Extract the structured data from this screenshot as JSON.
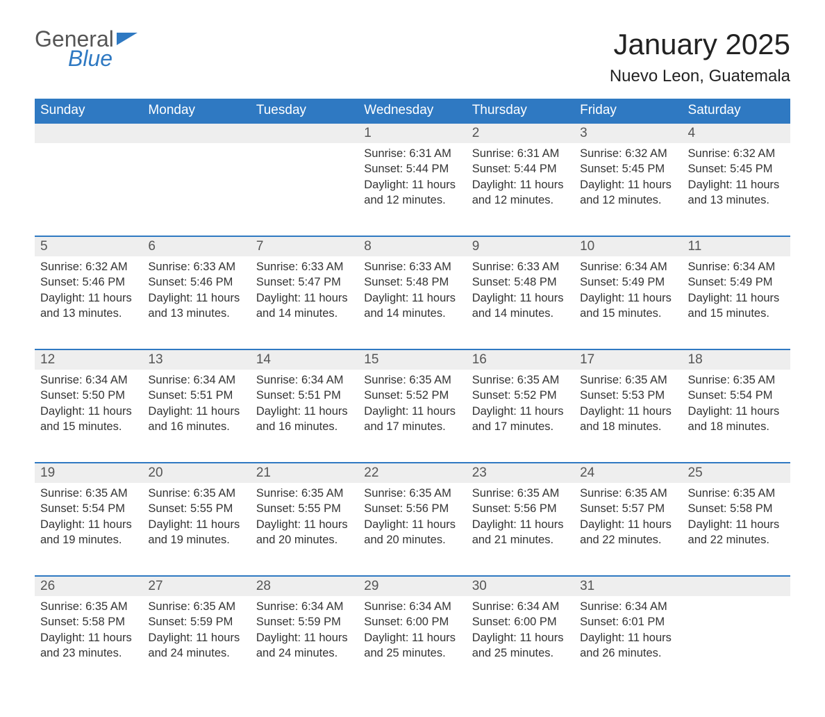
{
  "logo": {
    "word1": "General",
    "word2": "Blue"
  },
  "title": "January 2025",
  "subtitle": "Nuevo Leon, Guatemala",
  "colors": {
    "header_bg": "#2f79c2",
    "header_text": "#ffffff",
    "daynum_bg": "#eeeeee",
    "border_top": "#2f79c2",
    "body_text": "#333333",
    "logo_gray": "#555555",
    "logo_blue": "#2f79c2",
    "page_bg": "#ffffff"
  },
  "typography": {
    "title_fontsize": 42,
    "subtitle_fontsize": 24,
    "header_fontsize": 19,
    "daynum_fontsize": 19,
    "cell_fontsize": 16.5
  },
  "columns": [
    "Sunday",
    "Monday",
    "Tuesday",
    "Wednesday",
    "Thursday",
    "Friday",
    "Saturday"
  ],
  "weeks": [
    [
      null,
      null,
      null,
      {
        "n": "1",
        "sunrise": "6:31 AM",
        "sunset": "5:44 PM",
        "daylight": "11 hours and 12 minutes."
      },
      {
        "n": "2",
        "sunrise": "6:31 AM",
        "sunset": "5:44 PM",
        "daylight": "11 hours and 12 minutes."
      },
      {
        "n": "3",
        "sunrise": "6:32 AM",
        "sunset": "5:45 PM",
        "daylight": "11 hours and 12 minutes."
      },
      {
        "n": "4",
        "sunrise": "6:32 AM",
        "sunset": "5:45 PM",
        "daylight": "11 hours and 13 minutes."
      }
    ],
    [
      {
        "n": "5",
        "sunrise": "6:32 AM",
        "sunset": "5:46 PM",
        "daylight": "11 hours and 13 minutes."
      },
      {
        "n": "6",
        "sunrise": "6:33 AM",
        "sunset": "5:46 PM",
        "daylight": "11 hours and 13 minutes."
      },
      {
        "n": "7",
        "sunrise": "6:33 AM",
        "sunset": "5:47 PM",
        "daylight": "11 hours and 14 minutes."
      },
      {
        "n": "8",
        "sunrise": "6:33 AM",
        "sunset": "5:48 PM",
        "daylight": "11 hours and 14 minutes."
      },
      {
        "n": "9",
        "sunrise": "6:33 AM",
        "sunset": "5:48 PM",
        "daylight": "11 hours and 14 minutes."
      },
      {
        "n": "10",
        "sunrise": "6:34 AM",
        "sunset": "5:49 PM",
        "daylight": "11 hours and 15 minutes."
      },
      {
        "n": "11",
        "sunrise": "6:34 AM",
        "sunset": "5:49 PM",
        "daylight": "11 hours and 15 minutes."
      }
    ],
    [
      {
        "n": "12",
        "sunrise": "6:34 AM",
        "sunset": "5:50 PM",
        "daylight": "11 hours and 15 minutes."
      },
      {
        "n": "13",
        "sunrise": "6:34 AM",
        "sunset": "5:51 PM",
        "daylight": "11 hours and 16 minutes."
      },
      {
        "n": "14",
        "sunrise": "6:34 AM",
        "sunset": "5:51 PM",
        "daylight": "11 hours and 16 minutes."
      },
      {
        "n": "15",
        "sunrise": "6:35 AM",
        "sunset": "5:52 PM",
        "daylight": "11 hours and 17 minutes."
      },
      {
        "n": "16",
        "sunrise": "6:35 AM",
        "sunset": "5:52 PM",
        "daylight": "11 hours and 17 minutes."
      },
      {
        "n": "17",
        "sunrise": "6:35 AM",
        "sunset": "5:53 PM",
        "daylight": "11 hours and 18 minutes."
      },
      {
        "n": "18",
        "sunrise": "6:35 AM",
        "sunset": "5:54 PM",
        "daylight": "11 hours and 18 minutes."
      }
    ],
    [
      {
        "n": "19",
        "sunrise": "6:35 AM",
        "sunset": "5:54 PM",
        "daylight": "11 hours and 19 minutes."
      },
      {
        "n": "20",
        "sunrise": "6:35 AM",
        "sunset": "5:55 PM",
        "daylight": "11 hours and 19 minutes."
      },
      {
        "n": "21",
        "sunrise": "6:35 AM",
        "sunset": "5:55 PM",
        "daylight": "11 hours and 20 minutes."
      },
      {
        "n": "22",
        "sunrise": "6:35 AM",
        "sunset": "5:56 PM",
        "daylight": "11 hours and 20 minutes."
      },
      {
        "n": "23",
        "sunrise": "6:35 AM",
        "sunset": "5:56 PM",
        "daylight": "11 hours and 21 minutes."
      },
      {
        "n": "24",
        "sunrise": "6:35 AM",
        "sunset": "5:57 PM",
        "daylight": "11 hours and 22 minutes."
      },
      {
        "n": "25",
        "sunrise": "6:35 AM",
        "sunset": "5:58 PM",
        "daylight": "11 hours and 22 minutes."
      }
    ],
    [
      {
        "n": "26",
        "sunrise": "6:35 AM",
        "sunset": "5:58 PM",
        "daylight": "11 hours and 23 minutes."
      },
      {
        "n": "27",
        "sunrise": "6:35 AM",
        "sunset": "5:59 PM",
        "daylight": "11 hours and 24 minutes."
      },
      {
        "n": "28",
        "sunrise": "6:34 AM",
        "sunset": "5:59 PM",
        "daylight": "11 hours and 24 minutes."
      },
      {
        "n": "29",
        "sunrise": "6:34 AM",
        "sunset": "6:00 PM",
        "daylight": "11 hours and 25 minutes."
      },
      {
        "n": "30",
        "sunrise": "6:34 AM",
        "sunset": "6:00 PM",
        "daylight": "11 hours and 25 minutes."
      },
      {
        "n": "31",
        "sunrise": "6:34 AM",
        "sunset": "6:01 PM",
        "daylight": "11 hours and 26 minutes."
      },
      null
    ]
  ],
  "labels": {
    "sunrise": "Sunrise: ",
    "sunset": "Sunset: ",
    "daylight": "Daylight: "
  }
}
